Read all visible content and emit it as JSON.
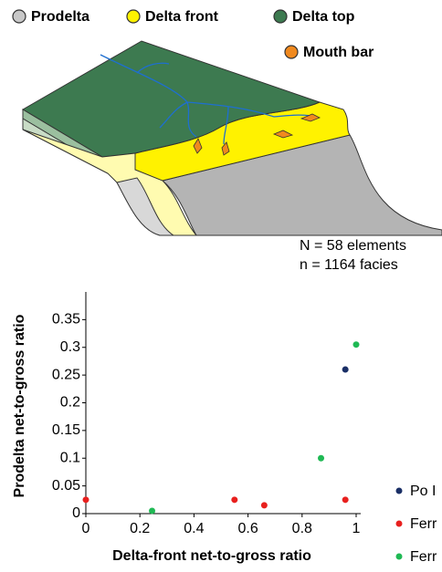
{
  "diagram": {
    "legend": [
      {
        "label": "Prodelta",
        "color": "#c8c8c8"
      },
      {
        "label": "Delta front",
        "color": "#fff200"
      },
      {
        "label": "Delta top",
        "color": "#3d7a50"
      },
      {
        "label": "Mouth bar",
        "color": "#f0891e"
      }
    ]
  },
  "chart_data": {
    "type": "scatter",
    "annotations": [
      "N = 58 elements",
      "n = 1164 facies"
    ],
    "x_label": "Delta-front net-to-gross ratio",
    "y_label": "Prodelta net-to-gross ratio",
    "xlim": [
      0,
      1
    ],
    "xticks": [
      0,
      0.2,
      0.4,
      0.6,
      0.8,
      1
    ],
    "ylim": [
      0,
      0.4
    ],
    "yticks": [
      0,
      0.05,
      0.1,
      0.15,
      0.2,
      0.25,
      0.3,
      0.35
    ],
    "series": [
      {
        "name": "Po I",
        "color": "#1a2f66",
        "x": [
          0.96
        ],
        "values": [
          0.26
        ]
      },
      {
        "name": "Ferr",
        "color": "#e8201e",
        "x": [
          0.0,
          0.55,
          0.66,
          0.96
        ],
        "values": [
          0.025,
          0.025,
          0.015,
          0.025
        ]
      },
      {
        "name": "Ferr",
        "color": "#1fb954",
        "x": [
          1.0,
          0.87,
          0.245
        ],
        "values": [
          0.305,
          0.1,
          0.005
        ]
      }
    ]
  }
}
